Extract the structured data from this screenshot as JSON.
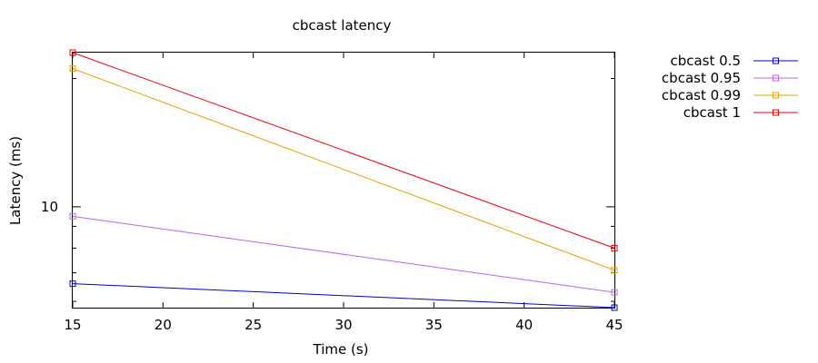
{
  "chart_data": {
    "type": "line",
    "title": "cbcast latency",
    "xlabel": "Time (s)",
    "ylabel": "Latency (ms)",
    "x_scale": "linear",
    "y_scale": "log",
    "xlim": [
      15,
      45
    ],
    "ylim": [
      5.8,
      23
    ],
    "x_ticks": [
      15,
      20,
      25,
      30,
      35,
      40,
      45
    ],
    "y_ticks": [
      10
    ],
    "grid": false,
    "legend_position": "outside-top-right",
    "series": [
      {
        "name": "cbcast 0.5",
        "color": "#0000cc",
        "x": [
          15,
          45
        ],
        "y": [
          6.6,
          5.8
        ]
      },
      {
        "name": "cbcast 0.95",
        "color": "#bb66ee",
        "x": [
          15,
          45
        ],
        "y": [
          9.5,
          6.3
        ]
      },
      {
        "name": "cbcast 0.99",
        "color": "#e8a000",
        "x": [
          15,
          45
        ],
        "y": [
          21.1,
          7.1
        ]
      },
      {
        "name": "cbcast 1",
        "color": "#ee0000",
        "x": [
          15,
          45
        ],
        "y": [
          23.0,
          8.0
        ]
      }
    ]
  }
}
